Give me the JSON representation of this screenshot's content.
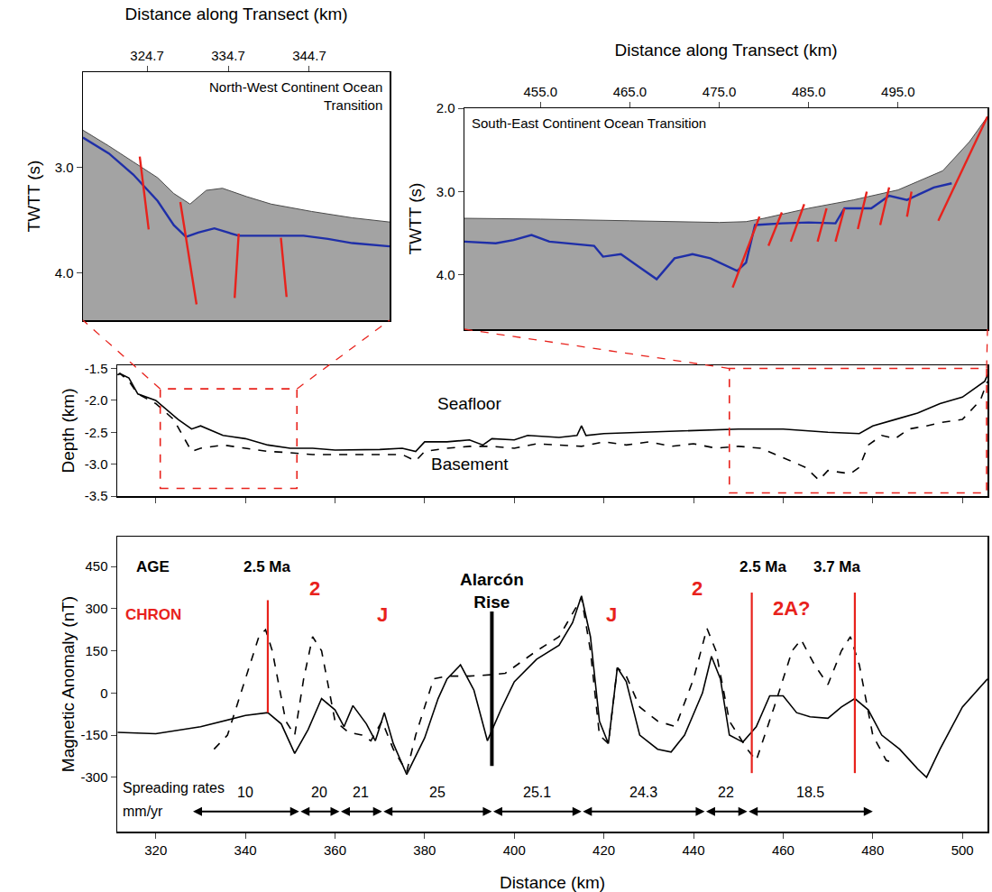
{
  "chart_data": [
    {
      "type": "line",
      "title": "North-West Continent Ocean Transition",
      "x_label": "Distance along Transect (km)",
      "y_label": "TWTT (s)",
      "xlim": [
        316.8,
        354.6
      ],
      "ylim": [
        4.45,
        2.1
      ],
      "xticks": [
        324.7,
        334.7,
        344.7
      ],
      "yticks": [
        {
          "value": 3,
          "label": "3.0"
        },
        {
          "value": 4,
          "label": "4.0"
        }
      ],
      "grid": false,
      "series": [
        {
          "type": "area",
          "color": "#ffffff",
          "x": [
            316.8,
            320,
            323,
            326,
            328,
            330,
            332,
            334,
            337,
            340,
            345,
            350,
            354.6
          ],
          "values": [
            2.65,
            2.8,
            2.95,
            3.1,
            3.25,
            3.35,
            3.22,
            3.2,
            3.28,
            3.35,
            3.42,
            3.48,
            3.52
          ]
        },
        {
          "color": "#1f2fa8",
          "line_style": "solid",
          "x": [
            316.8,
            320,
            323,
            326,
            328,
            329.5,
            331,
            333,
            336,
            340,
            344,
            347,
            350,
            354.6
          ],
          "values": [
            2.72,
            2.87,
            3.07,
            3.32,
            3.55,
            3.66,
            3.62,
            3.58,
            3.65,
            3.65,
            3.65,
            3.68,
            3.72,
            3.75
          ]
        },
        {
          "color": "#e8221c",
          "line_style": "solid",
          "x": [
            323.8,
            324.9,
            null,
            328.8,
            330.8,
            null,
            336,
            335.5,
            null,
            341.2,
            341.9
          ],
          "values": [
            2.9,
            3.59,
            null,
            3.33,
            4.3,
            null,
            3.63,
            4.24,
            null,
            3.67,
            4.23
          ]
        }
      ]
    },
    {
      "type": "line",
      "title": "South-East Continent Ocean Transition",
      "x_label": "Distance along Transect (km)",
      "y_label": "TWTT (s)",
      "xlim": [
        446.5,
        505
      ],
      "ylim": [
        4.65,
        2.0
      ],
      "xticks": [
        {
          "value": 455,
          "label": "455.0"
        },
        {
          "value": 465,
          "label": "465.0"
        },
        {
          "value": 475,
          "label": "475.0"
        },
        {
          "value": 485,
          "label": "485.0"
        },
        {
          "value": 495,
          "label": "495.0"
        }
      ],
      "yticks": [
        {
          "value": 2,
          "label": "2.0"
        },
        {
          "value": 3,
          "label": "3.0"
        },
        {
          "value": 4,
          "label": "4.0"
        }
      ],
      "grid": false,
      "series": [
        {
          "type": "area",
          "color": "#ffffff",
          "x": [
            446.5,
            455,
            465,
            475,
            478,
            480,
            485,
            490,
            495,
            500,
            503,
            505
          ],
          "values": [
            3.32,
            3.33,
            3.35,
            3.37,
            3.36,
            3.32,
            3.2,
            3.1,
            2.98,
            2.75,
            2.4,
            2.1
          ]
        },
        {
          "color": "#1f2fa8",
          "line_style": "solid",
          "x": [
            446.5,
            450,
            452,
            454,
            456,
            458,
            461,
            462,
            464,
            466,
            468,
            470,
            472,
            474,
            476,
            477,
            478,
            479,
            482,
            485,
            488,
            489,
            492,
            494,
            496,
            499,
            501
          ],
          "values": [
            3.6,
            3.62,
            3.58,
            3.52,
            3.6,
            3.62,
            3.65,
            3.78,
            3.75,
            3.9,
            4.05,
            3.8,
            3.75,
            3.8,
            3.9,
            3.95,
            3.85,
            3.4,
            3.38,
            3.37,
            3.38,
            3.2,
            3.2,
            3.05,
            3.1,
            2.95,
            2.9
          ]
        },
        {
          "color": "#e8221c",
          "line_style": "solid",
          "x": [
            476.5,
            479.5,
            null,
            480.5,
            482,
            null,
            483,
            484.5,
            null,
            486,
            487,
            null,
            488,
            489,
            null,
            490.5,
            491.5,
            null,
            493,
            494,
            null,
            496,
            496.5,
            null,
            499.5,
            505
          ],
          "values": [
            4.15,
            3.3,
            null,
            3.65,
            3.25,
            null,
            3.6,
            3.15,
            null,
            3.6,
            3.2,
            null,
            3.6,
            3.2,
            null,
            3.45,
            3.0,
            null,
            3.4,
            2.95,
            null,
            3.3,
            3.0,
            null,
            3.35,
            2.1
          ]
        }
      ]
    },
    {
      "type": "line",
      "y_label": "Depth (km)",
      "xlim": [
        311.4,
        505.6
      ],
      "ylim": [
        -3.5,
        -1.45
      ],
      "xticks": [
        320,
        340,
        360,
        380,
        400,
        420,
        440,
        460,
        480,
        500
      ],
      "yticks": [
        -1.5,
        {
          "value": -2,
          "label": "-2.0"
        },
        -2.5,
        {
          "value": -3,
          "label": "-3.0"
        },
        -3.5
      ],
      "tick_labels": "y",
      "grid": false,
      "series": [
        {
          "name": "Seafloor",
          "color": "#000000",
          "line_style": "solid",
          "label": {
            "x": 390,
            "y": -2.05
          },
          "x": [
            311.5,
            312,
            314,
            316,
            320,
            325,
            328,
            330,
            335,
            340,
            345,
            350,
            355,
            360,
            370,
            375,
            378,
            380,
            385,
            390,
            393,
            395,
            400,
            403,
            410,
            414,
            415,
            416,
            420,
            430,
            440,
            450,
            460,
            470,
            477,
            480,
            485,
            490,
            495,
            500,
            505,
            505.6
          ],
          "values": [
            -1.6,
            -1.58,
            -1.65,
            -1.9,
            -2.0,
            -2.3,
            -2.45,
            -2.4,
            -2.55,
            -2.6,
            -2.7,
            -2.75,
            -2.75,
            -2.78,
            -2.77,
            -2.75,
            -2.8,
            -2.65,
            -2.65,
            -2.62,
            -2.7,
            -2.6,
            -2.62,
            -2.55,
            -2.58,
            -2.55,
            -2.4,
            -2.55,
            -2.52,
            -2.5,
            -2.47,
            -2.45,
            -2.45,
            -2.5,
            -2.52,
            -2.4,
            -2.3,
            -2.2,
            -2.05,
            -1.95,
            -1.7,
            -1.6
          ]
        },
        {
          "name": "Basement",
          "color": "#000000",
          "line_style": "dashed",
          "label": {
            "x": 390,
            "y": -3.0
          },
          "x": [
            311.5,
            312,
            314,
            316,
            320,
            324,
            328,
            330,
            335,
            340,
            345,
            350,
            355,
            360,
            370,
            375,
            378,
            380,
            385,
            390,
            395,
            400,
            405,
            410,
            415,
            420,
            425,
            430,
            435,
            440,
            445,
            450,
            455,
            460,
            465,
            468,
            470,
            475,
            477,
            479,
            482,
            485,
            488,
            492,
            495,
            500,
            504,
            505.6
          ],
          "values": [
            -1.6,
            -1.58,
            -1.7,
            -1.9,
            -2.05,
            -2.3,
            -2.8,
            -2.75,
            -2.7,
            -2.75,
            -2.8,
            -2.82,
            -2.85,
            -2.85,
            -2.85,
            -2.85,
            -2.95,
            -2.8,
            -2.75,
            -2.72,
            -2.72,
            -2.75,
            -2.68,
            -2.7,
            -2.72,
            -2.65,
            -2.7,
            -2.65,
            -2.72,
            -2.68,
            -2.75,
            -2.72,
            -2.75,
            -2.9,
            -3.05,
            -3.25,
            -3.1,
            -3.15,
            -3.05,
            -2.7,
            -2.55,
            -2.6,
            -2.45,
            -2.4,
            -2.35,
            -2.3,
            -2.0,
            -1.7
          ]
        }
      ],
      "boxes": [
        {
          "x": [
            321,
            351.5
          ],
          "y": [
            -3.38,
            -1.82
          ],
          "color": "#e8221c"
        },
        {
          "x": [
            448,
            505.4
          ],
          "y": [
            -3.45,
            -1.5
          ],
          "color": "#e8221c"
        }
      ]
    },
    {
      "type": "line",
      "x_label": "Distance (km)",
      "y_label": "Magnetic Anomaly (nT)",
      "xlim": [
        311.4,
        505.6
      ],
      "ylim": [
        -493,
        556
      ],
      "xticks": [
        320,
        340,
        360,
        380,
        400,
        420,
        440,
        460,
        480,
        500
      ],
      "yticks": [
        -300,
        -150,
        0,
        150,
        300,
        450
      ],
      "grid": false,
      "series": [
        {
          "color": "#000000",
          "line_style": "solid",
          "x": [
            311.5,
            320,
            330,
            340,
            345,
            348,
            351,
            354,
            357,
            360,
            362,
            364,
            367,
            369,
            371,
            373,
            376,
            380,
            383,
            385,
            388,
            391,
            394,
            397,
            400,
            405,
            410,
            413,
            415,
            417,
            419,
            421,
            423,
            425,
            428,
            432,
            435,
            438,
            442,
            444,
            446,
            448,
            451,
            454,
            457,
            460,
            463,
            466,
            470,
            473,
            476,
            479,
            482,
            486,
            490,
            492,
            495,
            500,
            505.6
          ],
          "values": [
            -140,
            -145,
            -120,
            -80,
            -70,
            -110,
            -215,
            -130,
            -20,
            -60,
            -120,
            -45,
            -110,
            -170,
            -70,
            -180,
            -290,
            -160,
            -20,
            50,
            100,
            10,
            -170,
            -60,
            40,
            120,
            170,
            250,
            345,
            200,
            -100,
            -180,
            90,
            40,
            -150,
            -200,
            -210,
            -150,
            0,
            130,
            50,
            -150,
            -175,
            -120,
            -10,
            -10,
            -70,
            -85,
            -90,
            -50,
            -20,
            -60,
            -150,
            -200,
            -270,
            -300,
            -200,
            -50,
            50
          ]
        },
        {
          "color": "#000000",
          "line_style": "dashed",
          "x": [
            333,
            336,
            340,
            343,
            344.5,
            346,
            349,
            351,
            353,
            355,
            357,
            360,
            363,
            366,
            368,
            370.5,
            373,
            376,
            378,
            380,
            382,
            385,
            390,
            395,
            398,
            405,
            410,
            414,
            415,
            417,
            419,
            421,
            423,
            425,
            428,
            432,
            436,
            440,
            443,
            445,
            448,
            452,
            454,
            458,
            462,
            464,
            467,
            470,
            473,
            475,
            477,
            480,
            483,
            485
          ],
          "values": [
            -200,
            -150,
            50,
            200,
            225,
            150,
            -100,
            -150,
            50,
            200,
            150,
            -100,
            -140,
            -150,
            -170,
            -100,
            -200,
            -280,
            -150,
            -50,
            50,
            60,
            60,
            65,
            70,
            150,
            200,
            310,
            340,
            150,
            -150,
            -180,
            90,
            60,
            -50,
            -100,
            -120,
            50,
            230,
            150,
            -100,
            -200,
            -240,
            -50,
            150,
            190,
            100,
            30,
            150,
            200,
            100,
            -150,
            -240,
            -250
          ]
        }
      ],
      "age_labels": {
        "color": "#000000",
        "items": [
          {
            "text": "AGE",
            "x": 319.4,
            "y": 450
          },
          {
            "text": "2.5 Ma",
            "x": 345,
            "y": 450
          },
          {
            "text": "2.5 Ma",
            "x": 455.5,
            "y": 450
          },
          {
            "text": "3.7 Ma",
            "x": 472,
            "y": 450
          }
        ]
      },
      "chron_labels": {
        "color": "#e8221c",
        "items": [
          {
            "text": "CHRON",
            "x": 319.4,
            "y": 280
          },
          {
            "text": "2",
            "x": 355.5,
            "y": 370
          },
          {
            "text": "J",
            "x": 370.6,
            "y": 280
          },
          {
            "text": "J",
            "x": 421.7,
            "y": 280
          },
          {
            "text": "2",
            "x": 440.8,
            "y": 370
          },
          {
            "text": "2A?",
            "x": 462,
            "y": 300
          }
        ]
      },
      "chron_boundaries": {
        "color": "#e8221c",
        "items": [
          {
            "x": 345,
            "y": [
              -70,
              330
            ]
          },
          {
            "x": 453,
            "y": [
              -285,
              357
            ]
          },
          {
            "x": 476,
            "y": [
              -285,
              357
            ]
          }
        ]
      },
      "ridge": {
        "text": "Alarcón Rise",
        "x": 395,
        "y": 365,
        "line": [
          -260,
          290
        ],
        "color": "#000000"
      },
      "spreading_rates": {
        "label": [
          "Spreading rates",
          "mm/yr"
        ],
        "label_x": 312.3,
        "label_y": [
          -338,
          -422
        ],
        "text_y": -354,
        "arrow_y": -422,
        "items": [
          {
            "from": 328,
            "to": 352,
            "value": 10
          },
          {
            "from": 352,
            "to": 361,
            "value": 20
          },
          {
            "from": 361,
            "to": 370.5,
            "value": 21
          },
          {
            "from": 370.5,
            "to": 395,
            "value": 25
          },
          {
            "from": 395,
            "to": 415,
            "value": 25.1
          },
          {
            "from": 415,
            "to": 442.5,
            "value": 24.3
          },
          {
            "from": 442.5,
            "to": 452,
            "value": 22
          },
          {
            "from": 452,
            "to": 480,
            "value": 18.5
          }
        ]
      }
    }
  ]
}
